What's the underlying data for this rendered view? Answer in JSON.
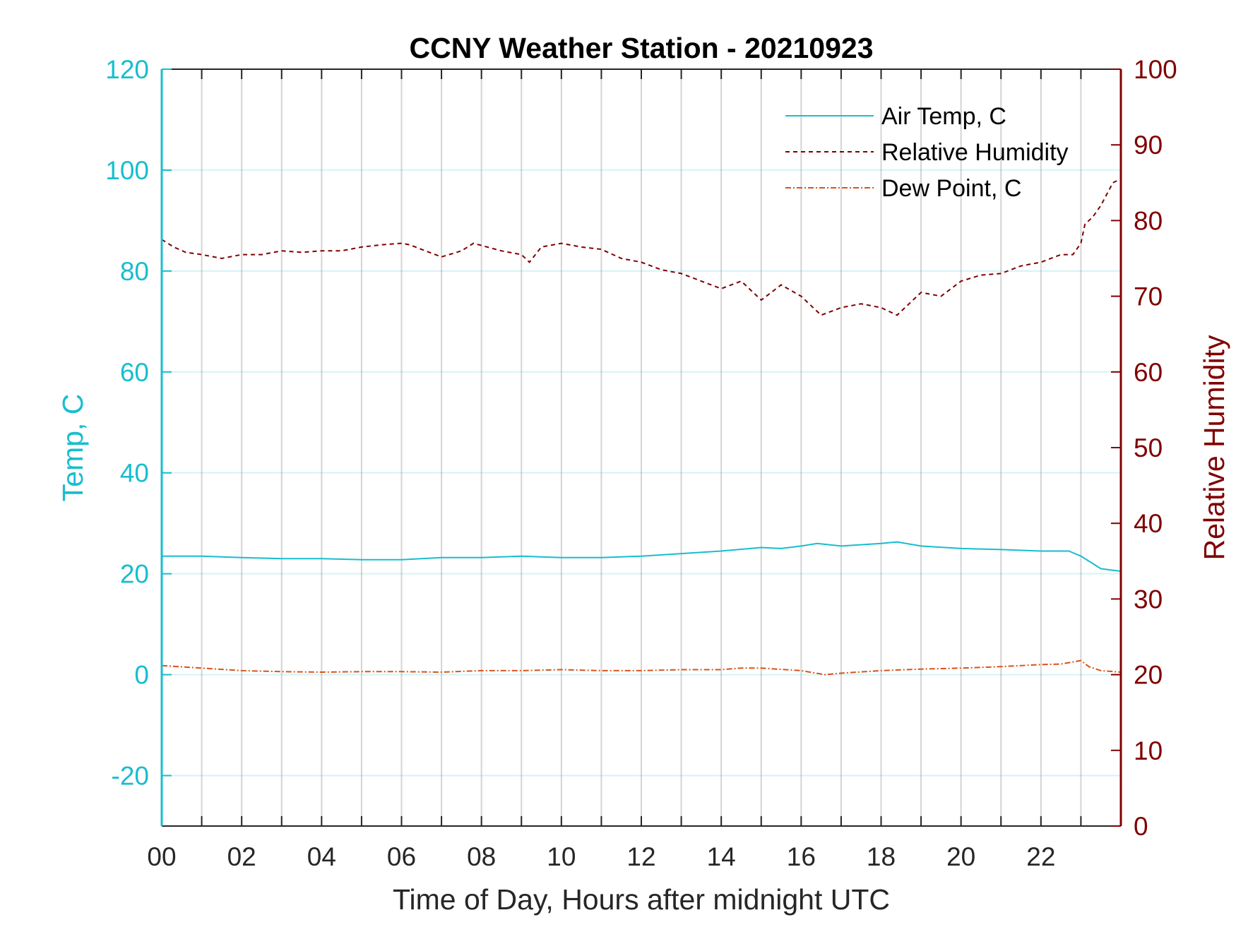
{
  "chart_data": {
    "type": "line",
    "title": "CCNY Weather Station - 20210923",
    "xlabel": "Time of Day, Hours after midnight UTC",
    "ylabel_left": "Temp, C",
    "ylabel_right": "Relative Humidity",
    "xlim": [
      0,
      24
    ],
    "ylim_left": [
      -30,
      120
    ],
    "ylim_right": [
      0,
      100
    ],
    "x_ticks": [
      0,
      2,
      4,
      6,
      8,
      10,
      12,
      14,
      16,
      18,
      20,
      22
    ],
    "x_tick_labels": [
      "00",
      "02",
      "04",
      "06",
      "08",
      "10",
      "12",
      "14",
      "16",
      "18",
      "20",
      "22"
    ],
    "y_left_ticks": [
      -20,
      0,
      20,
      40,
      60,
      80,
      100,
      120
    ],
    "y_left_tick_labels": [
      "-20",
      "0",
      "20",
      "40",
      "60",
      "80",
      "100",
      "120"
    ],
    "y_right_ticks": [
      0,
      10,
      20,
      30,
      40,
      50,
      60,
      70,
      80,
      90,
      100
    ],
    "y_right_tick_labels": [
      "0",
      "10",
      "20",
      "30",
      "40",
      "50",
      "60",
      "70",
      "80",
      "90",
      "100"
    ],
    "grid": true,
    "legend_position": "top-right",
    "colors": {
      "left_axis": "#17becf",
      "right_axis": "#800000",
      "air_temp": "#17becf",
      "humidity": "#800000",
      "dew_point": "#d95319"
    },
    "series": [
      {
        "name": "Air Temp, C",
        "axis": "left",
        "style": "solid",
        "x": [
          0,
          1,
          2,
          3,
          4,
          5,
          6,
          7,
          8,
          9,
          10,
          11,
          12,
          13,
          14,
          15,
          15.5,
          16,
          16.4,
          17,
          18,
          18.4,
          19,
          20,
          21,
          22,
          22.7,
          23,
          23.3,
          23.5,
          24
        ],
        "y": [
          23.5,
          23.5,
          23.2,
          23.0,
          23.0,
          22.8,
          22.8,
          23.2,
          23.2,
          23.5,
          23.2,
          23.2,
          23.5,
          24.0,
          24.5,
          25.2,
          25.0,
          25.5,
          26.0,
          25.5,
          26.0,
          26.3,
          25.5,
          25.0,
          24.8,
          24.5,
          24.5,
          23.5,
          22.0,
          21.0,
          20.5
        ]
      },
      {
        "name": "Relative Humidity",
        "axis": "right",
        "style": "dashed",
        "x": [
          0,
          0.3,
          0.6,
          1,
          1.5,
          2,
          2.5,
          3,
          3.5,
          4,
          4.5,
          5,
          5.5,
          6,
          6.2,
          7,
          7.5,
          7.8,
          8.5,
          9,
          9.2,
          9.5,
          10,
          10.5,
          11,
          11.5,
          12,
          12.5,
          13,
          13.5,
          14,
          14.5,
          15,
          15.5,
          16,
          16.5,
          17,
          17.5,
          18,
          18.4,
          18.7,
          19,
          19.5,
          20,
          20.5,
          21,
          21.5,
          22,
          22.5,
          22.8,
          23,
          23.1,
          23.3,
          23.5,
          23.8,
          24
        ],
        "y": [
          77.5,
          76.5,
          75.8,
          75.5,
          75.0,
          75.5,
          75.5,
          76.0,
          75.8,
          76.0,
          76.0,
          76.5,
          76.8,
          77.0,
          76.8,
          75.2,
          76.0,
          77.0,
          76.0,
          75.5,
          74.5,
          76.5,
          77.0,
          76.5,
          76.2,
          75.0,
          74.5,
          73.5,
          73.0,
          72.0,
          71.0,
          72.0,
          69.5,
          71.5,
          70.0,
          67.5,
          68.5,
          69.0,
          68.5,
          67.5,
          69.0,
          70.5,
          70.0,
          72.0,
          72.8,
          73.0,
          74.0,
          74.5,
          75.5,
          75.5,
          77.0,
          79.5,
          80.5,
          82.0,
          85.0,
          85.5
        ]
      },
      {
        "name": "Dew Point, C",
        "axis": "left",
        "style": "dash-dot",
        "x": [
          0,
          1,
          2,
          3,
          4,
          5,
          6,
          7,
          8,
          9,
          10,
          11,
          12,
          13,
          14,
          14.5,
          15,
          16,
          16.6,
          17,
          18,
          19,
          20,
          21,
          22,
          22.5,
          23,
          23.2,
          23.5,
          24
        ],
        "y": [
          1.8,
          1.3,
          0.8,
          0.6,
          0.5,
          0.6,
          0.6,
          0.5,
          0.8,
          0.8,
          1.0,
          0.8,
          0.8,
          1.0,
          1.0,
          1.3,
          1.3,
          0.8,
          0.0,
          0.3,
          0.8,
          1.1,
          1.3,
          1.6,
          2.0,
          2.1,
          2.8,
          1.6,
          0.8,
          0.5
        ]
      }
    ]
  }
}
